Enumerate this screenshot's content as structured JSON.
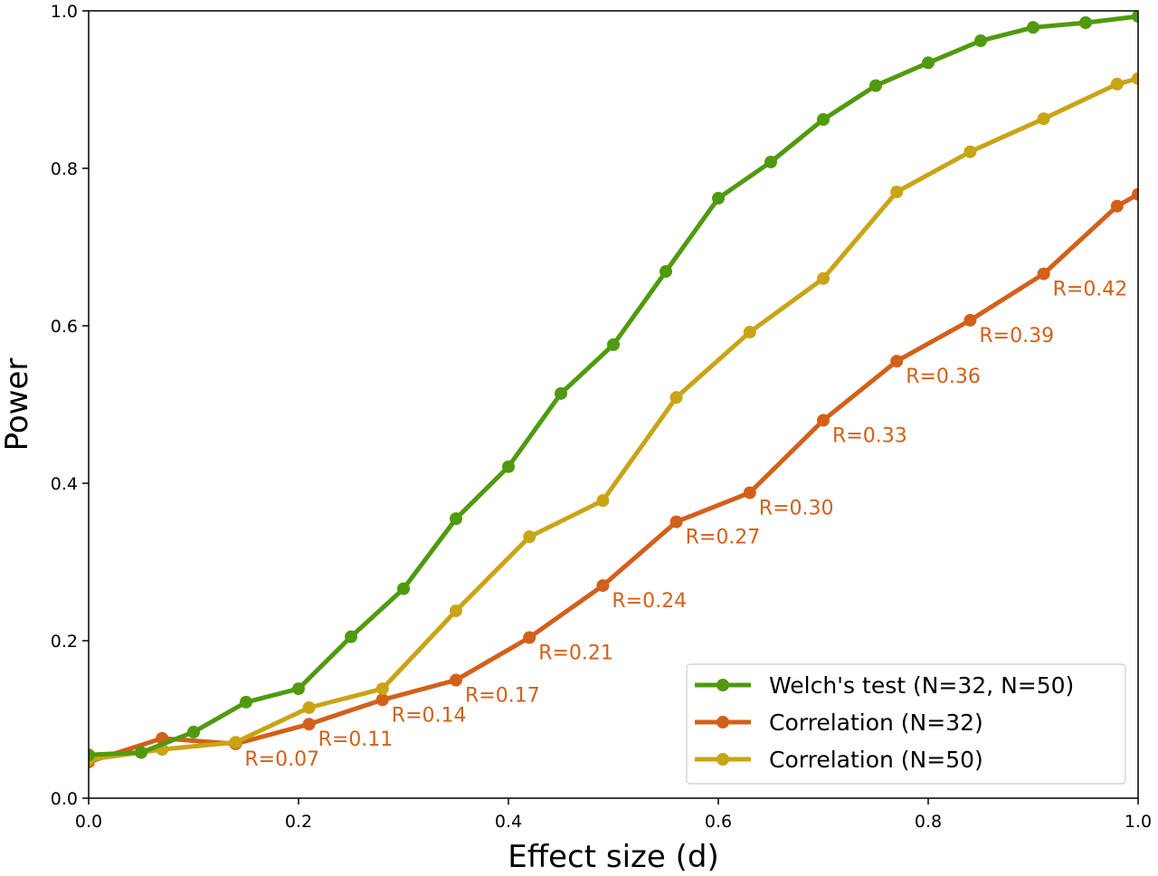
{
  "chart_data": {
    "type": "line",
    "title": "",
    "xlabel": "Effect size (d)",
    "ylabel": "Power",
    "xlim": [
      0.0,
      1.0
    ],
    "ylim": [
      0.0,
      1.0
    ],
    "xticks": [
      "0.0",
      "0.2",
      "0.4",
      "0.6",
      "0.8",
      "1.0"
    ],
    "yticks": [
      "0.0",
      "0.2",
      "0.4",
      "0.6",
      "0.8",
      "1.0"
    ],
    "grid": false,
    "legend_position": "lower-right",
    "series": [
      {
        "name": "Welch's test (N=32, N=50)",
        "color": "#4f9a0e",
        "x": [
          0.0,
          0.05,
          0.1,
          0.15,
          0.2,
          0.25,
          0.3,
          0.35,
          0.4,
          0.45,
          0.5,
          0.55,
          0.6,
          0.65,
          0.7,
          0.75,
          0.8,
          0.85,
          0.9,
          0.95,
          1.0
        ],
        "y": [
          0.055,
          0.058,
          0.084,
          0.122,
          0.139,
          0.205,
          0.266,
          0.355,
          0.421,
          0.514,
          0.576,
          0.669,
          0.762,
          0.808,
          0.862,
          0.905,
          0.934,
          0.962,
          0.979,
          0.985,
          0.993
        ]
      },
      {
        "name": "Correlation (N=32)",
        "color": "#d2601a",
        "x": [
          0.0,
          0.07,
          0.14,
          0.21,
          0.28,
          0.35,
          0.42,
          0.49,
          0.56,
          0.63,
          0.7,
          0.77,
          0.84,
          0.91,
          0.98,
          1.0
        ],
        "y": [
          0.046,
          0.076,
          0.069,
          0.094,
          0.125,
          0.15,
          0.204,
          0.27,
          0.351,
          0.388,
          0.48,
          0.555,
          0.607,
          0.666,
          0.752,
          0.767
        ],
        "point_labels": [
          "",
          "",
          "R=0.07",
          "R=0.11",
          "R=0.14",
          "R=0.17",
          "R=0.21",
          "R=0.24",
          "R=0.27",
          "R=0.30",
          "R=0.33",
          "R=0.36",
          "R=0.39",
          "R=0.42",
          "",
          ""
        ]
      },
      {
        "name": "Correlation (N=50)",
        "color": "#c9a416",
        "x": [
          0.0,
          0.07,
          0.14,
          0.21,
          0.28,
          0.35,
          0.42,
          0.49,
          0.56,
          0.63,
          0.7,
          0.77,
          0.84,
          0.91,
          0.98,
          1.0
        ],
        "y": [
          0.049,
          0.062,
          0.071,
          0.115,
          0.139,
          0.238,
          0.332,
          0.378,
          0.509,
          0.592,
          0.66,
          0.77,
          0.821,
          0.863,
          0.907,
          0.914
        ]
      }
    ]
  }
}
